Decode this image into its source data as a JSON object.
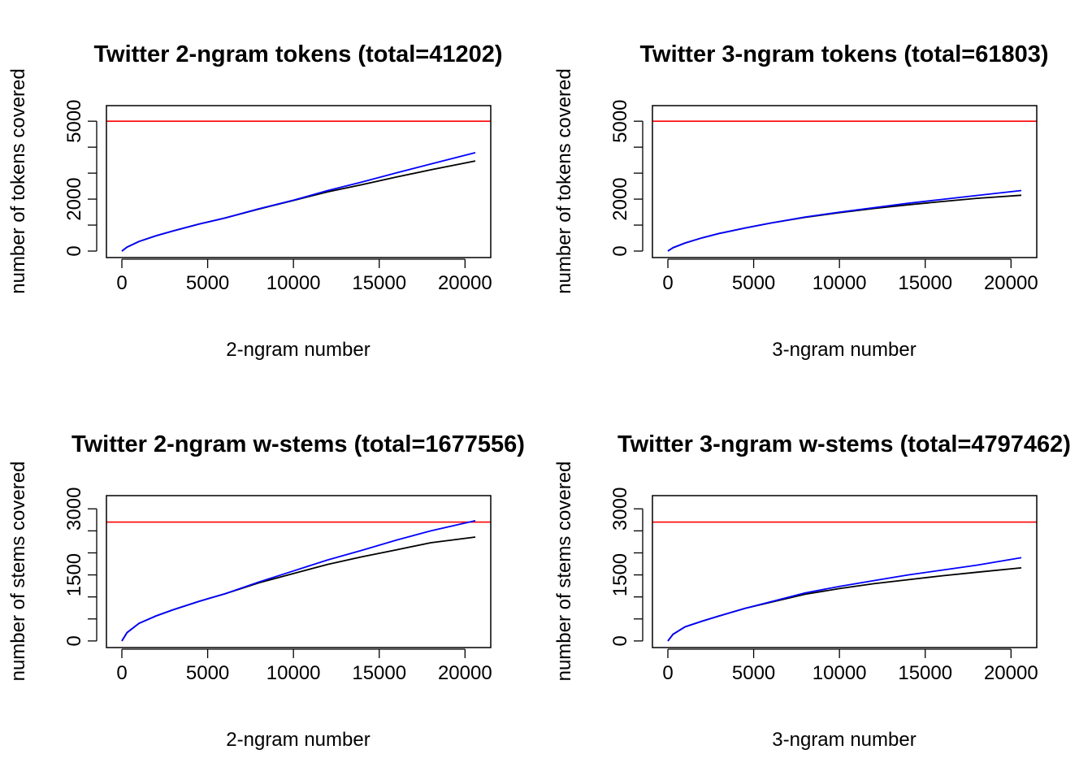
{
  "series_colors": {
    "observed": "#000000",
    "model": "#0000ff",
    "reference": "#ff0000"
  },
  "chart_data": [
    {
      "type": "line",
      "title": "Twitter 2-ngram tokens (total=41202)",
      "xlabel": "2-ngram number",
      "ylabel": "number of tokens covered",
      "xlim": [
        -900,
        21500
      ],
      "ylim": [
        -250,
        5600
      ],
      "xticks": [
        0,
        5000,
        10000,
        15000,
        20000
      ],
      "yticks": [
        0,
        1000,
        2000,
        3000,
        4000,
        5000
      ],
      "yticklabels": [
        "0",
        "",
        "2000",
        "",
        "",
        "5000"
      ],
      "hline": 5000,
      "series": [
        {
          "color": "#000000",
          "x": [
            0,
            300,
            1000,
            2000,
            3000,
            4500,
            6000,
            8000,
            10000,
            12000,
            14000,
            16000,
            18000,
            20600
          ],
          "y": [
            0,
            150,
            370,
            590,
            780,
            1040,
            1270,
            1620,
            1950,
            2280,
            2560,
            2850,
            3130,
            3470
          ]
        },
        {
          "color": "#0000ff",
          "x": [
            0,
            300,
            1000,
            2000,
            3000,
            4500,
            6000,
            8000,
            10000,
            12000,
            14000,
            16000,
            18000,
            20600
          ],
          "y": [
            0,
            150,
            370,
            590,
            780,
            1040,
            1270,
            1630,
            1960,
            2330,
            2660,
            3010,
            3350,
            3790
          ]
        }
      ]
    },
    {
      "type": "line",
      "title": "Twitter 3-ngram tokens (total=61803)",
      "xlabel": "3-ngram number",
      "ylabel": "number of tokens covered",
      "xlim": [
        -900,
        21500
      ],
      "ylim": [
        -250,
        5600
      ],
      "xticks": [
        0,
        5000,
        10000,
        15000,
        20000
      ],
      "yticks": [
        0,
        1000,
        2000,
        3000,
        4000,
        5000
      ],
      "yticklabels": [
        "0",
        "",
        "2000",
        "",
        "",
        "5000"
      ],
      "hline": 5000,
      "series": [
        {
          "color": "#000000",
          "x": [
            0,
            300,
            1000,
            2000,
            3000,
            4500,
            6000,
            8000,
            10000,
            12000,
            14000,
            16000,
            18000,
            20600
          ],
          "y": [
            0,
            130,
            310,
            510,
            680,
            890,
            1080,
            1300,
            1480,
            1640,
            1780,
            1910,
            2030,
            2150
          ]
        },
        {
          "color": "#0000ff",
          "x": [
            0,
            300,
            1000,
            2000,
            3000,
            4500,
            6000,
            8000,
            10000,
            12000,
            14000,
            16000,
            18000,
            20600
          ],
          "y": [
            0,
            130,
            310,
            510,
            680,
            890,
            1080,
            1310,
            1500,
            1670,
            1840,
            1990,
            2140,
            2330
          ]
        }
      ]
    },
    {
      "type": "line",
      "title": "Twitter 2-ngram w-stems (total=1677556)",
      "xlabel": "2-ngram number",
      "ylabel": "number of stems covered",
      "xlim": [
        -900,
        21500
      ],
      "ylim": [
        -150,
        3300
      ],
      "xticks": [
        0,
        5000,
        10000,
        15000,
        20000
      ],
      "yticks": [
        0,
        500,
        1000,
        1500,
        2000,
        2500,
        3000
      ],
      "yticklabels": [
        "0",
        "",
        "",
        "1500",
        "",
        "",
        "3000"
      ],
      "hline": 2700,
      "series": [
        {
          "color": "#000000",
          "x": [
            0,
            300,
            1000,
            2000,
            3000,
            4500,
            6000,
            8000,
            10000,
            12000,
            14000,
            16000,
            18000,
            20600
          ],
          "y": [
            0,
            190,
            400,
            570,
            710,
            900,
            1070,
            1320,
            1530,
            1740,
            1910,
            2070,
            2230,
            2360
          ]
        },
        {
          "color": "#0000ff",
          "x": [
            0,
            300,
            1000,
            2000,
            3000,
            4500,
            6000,
            8000,
            10000,
            12000,
            14000,
            16000,
            18000,
            20600
          ],
          "y": [
            0,
            190,
            400,
            570,
            710,
            900,
            1070,
            1340,
            1590,
            1840,
            2060,
            2290,
            2500,
            2730
          ]
        }
      ]
    },
    {
      "type": "line",
      "title": "Twitter 3-ngram w-stems (total=4797462)",
      "xlabel": "3-ngram number",
      "ylabel": "number of stems covered",
      "xlim": [
        -900,
        21500
      ],
      "ylim": [
        -150,
        3300
      ],
      "xticks": [
        0,
        5000,
        10000,
        15000,
        20000
      ],
      "yticks": [
        0,
        500,
        1000,
        1500,
        2000,
        2500,
        3000
      ],
      "yticklabels": [
        "0",
        "",
        "",
        "1500",
        "",
        "",
        "3000"
      ],
      "hline": 2700,
      "series": [
        {
          "color": "#000000",
          "x": [
            0,
            300,
            1000,
            2000,
            3000,
            4500,
            6000,
            8000,
            10000,
            12000,
            14000,
            16000,
            18000,
            20600
          ],
          "y": [
            0,
            150,
            320,
            450,
            570,
            740,
            880,
            1060,
            1190,
            1300,
            1390,
            1480,
            1560,
            1660
          ]
        },
        {
          "color": "#0000ff",
          "x": [
            0,
            300,
            1000,
            2000,
            3000,
            4500,
            6000,
            8000,
            10000,
            12000,
            14000,
            16000,
            18000,
            20600
          ],
          "y": [
            0,
            150,
            320,
            450,
            570,
            740,
            890,
            1090,
            1240,
            1370,
            1500,
            1610,
            1720,
            1890
          ]
        }
      ]
    }
  ]
}
